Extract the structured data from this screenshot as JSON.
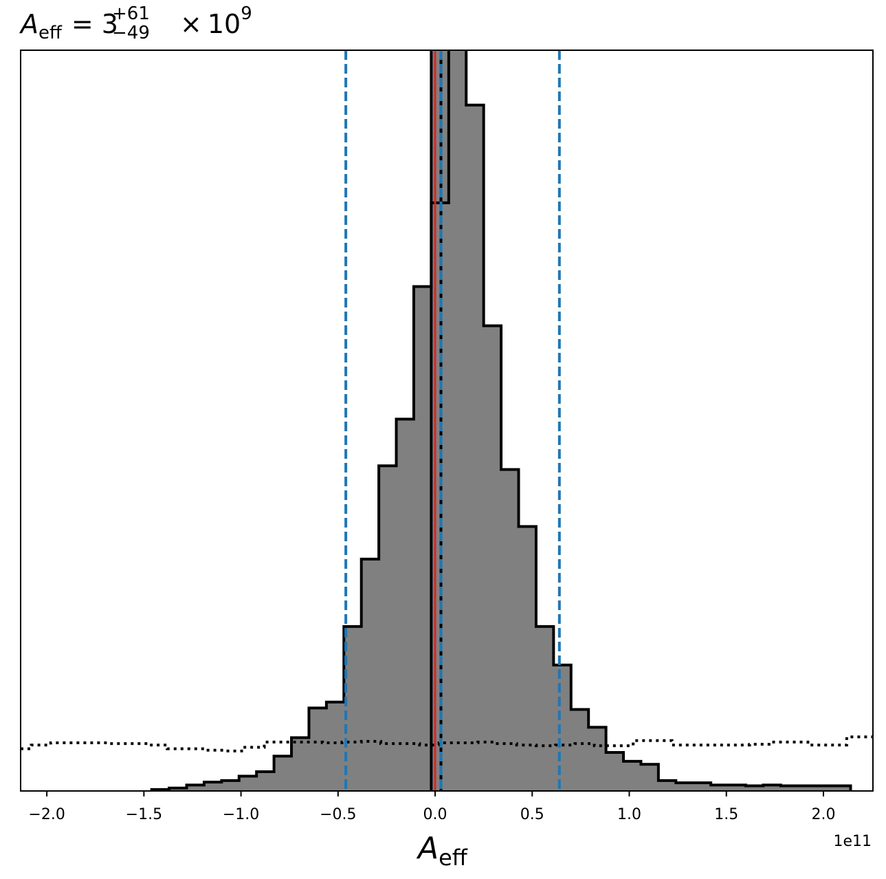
{
  "chart_data": {
    "type": "histogram",
    "title": {
      "symbol": "A",
      "subscript": "eff",
      "equals": "=",
      "mantissa": "3",
      "upper": "+61",
      "lower": "−49",
      "times": "×",
      "base": "10",
      "exponent": "9"
    },
    "xlabel": {
      "symbol": "A",
      "subscript": "eff"
    },
    "x_offset_label": "1e11",
    "x_scale": 100000000000.0,
    "xlim": [
      -2.135,
      2.255
    ],
    "ylim": [
      0,
      1.0
    ],
    "x_ticks": [
      {
        "value": -2.0,
        "label": "−2.0"
      },
      {
        "value": -1.5,
        "label": "−1.5"
      },
      {
        "value": -1.0,
        "label": "−1.0"
      },
      {
        "value": -0.5,
        "label": "−0.5"
      },
      {
        "value": 0.0,
        "label": "0.0"
      },
      {
        "value": 0.5,
        "label": "0.5"
      },
      {
        "value": 1.0,
        "label": "1.0"
      },
      {
        "value": 1.5,
        "label": "1.5"
      },
      {
        "value": 2.0,
        "label": "2.0"
      }
    ],
    "posterior_histogram": {
      "fill_color": "#808080",
      "edge_color": "#000000",
      "bin_edges": [
        -1.46,
        -1.37,
        -1.28,
        -1.19,
        -1.1,
        -1.01,
        -0.92,
        -0.83,
        -0.74,
        -0.65,
        -0.56,
        -0.47,
        -0.38,
        -0.29,
        -0.2,
        -0.11,
        -0.02,
        0.07,
        0.16,
        0.25,
        0.34,
        0.43,
        0.52,
        0.61,
        0.7,
        0.79,
        0.88,
        0.97,
        1.06,
        1.15,
        1.24,
        1.33,
        1.42,
        1.51,
        1.6,
        1.69,
        1.78,
        1.87,
        1.96,
        2.05,
        2.14
      ],
      "counts": [
        0.002,
        0.004,
        0.008,
        0.012,
        0.014,
        0.02,
        0.026,
        0.047,
        0.072,
        0.112,
        0.12,
        0.222,
        0.313,
        0.439,
        0.502,
        0.681,
        0.794,
        1.012,
        0.926,
        0.628,
        0.434,
        0.357,
        0.222,
        0.17,
        0.11,
        0.086,
        0.052,
        0.04,
        0.036,
        0.014,
        0.011,
        0.011,
        0.008,
        0.008,
        0.007,
        0.008,
        0.007,
        0.007,
        0.007,
        0.007
      ],
      "peak_bins": [
        {
          "left": -0.02,
          "right": 0.03,
          "count": 1.012
        },
        {
          "left": 0.03,
          "right": 0.07,
          "count": 1.012
        }
      ]
    },
    "prior_histogram": {
      "style": "dotted",
      "color": "#000000",
      "bin_edges": [
        -2.135,
        -2.08,
        -1.98,
        -1.88,
        -1.78,
        -1.68,
        -1.58,
        -1.48,
        -1.38,
        -1.28,
        -1.18,
        -1.08,
        -0.98,
        -0.88,
        -0.78,
        -0.68,
        -0.58,
        -0.48,
        -0.38,
        -0.28,
        -0.18,
        -0.08,
        0.02,
        0.12,
        0.22,
        0.32,
        0.42,
        0.52,
        0.62,
        0.72,
        0.82,
        0.92,
        1.02,
        1.12,
        1.22,
        1.32,
        1.42,
        1.52,
        1.62,
        1.72,
        1.82,
        1.92,
        2.02,
        2.12,
        2.255
      ],
      "counts": [
        0.057,
        0.062,
        0.065,
        0.065,
        0.065,
        0.064,
        0.064,
        0.062,
        0.057,
        0.057,
        0.055,
        0.054,
        0.059,
        0.066,
        0.066,
        0.066,
        0.065,
        0.066,
        0.067,
        0.064,
        0.064,
        0.062,
        0.065,
        0.065,
        0.066,
        0.064,
        0.062,
        0.061,
        0.062,
        0.064,
        0.061,
        0.061,
        0.068,
        0.068,
        0.062,
        0.062,
        0.062,
        0.062,
        0.063,
        0.066,
        0.066,
        0.062,
        0.062,
        0.073
      ]
    },
    "vertical_lines": [
      {
        "value": -0.46,
        "color": "#1f77b4",
        "style": "dashed"
      },
      {
        "value": 0.03,
        "color": "#1f77b4",
        "style": "dashed"
      },
      {
        "value": 0.64,
        "color": "#1f77b4",
        "style": "dashed"
      },
      {
        "value": 0.0,
        "color": "#d62728",
        "style": "solid"
      }
    ],
    "grid": false
  }
}
